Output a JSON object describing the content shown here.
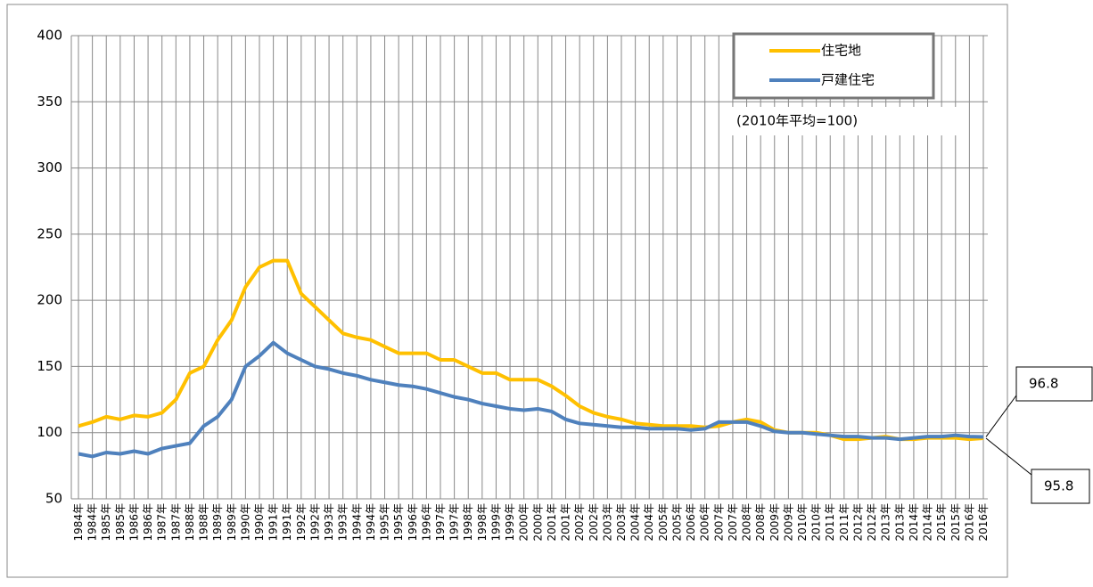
{
  "chart_data": {
    "type": "line",
    "note": "(2010年平均=100)",
    "categories": [
      "1984年",
      "1984年",
      "1985年",
      "1985年",
      "1986年",
      "1986年",
      "1987年",
      "1987年",
      "1988年",
      "1988年",
      "1989年",
      "1989年",
      "1990年",
      "1990年",
      "1991年",
      "1991年",
      "1992年",
      "1992年",
      "1993年",
      "1993年",
      "1994年",
      "1994年",
      "1995年",
      "1995年",
      "1996年",
      "1996年",
      "1997年",
      "1997年",
      "1998年",
      "1998年",
      "1999年",
      "1999年",
      "2000年",
      "2000年",
      "2001年",
      "2001年",
      "2002年",
      "2002年",
      "2003年",
      "2003年",
      "2004年",
      "2004年",
      "2005年",
      "2005年",
      "2006年",
      "2006年",
      "2007年",
      "2007年",
      "2008年",
      "2008年",
      "2009年",
      "2009年",
      "2010年",
      "2010年",
      "2011年",
      "2011年",
      "2012年",
      "2012年",
      "2013年",
      "2013年",
      "2014年",
      "2014年",
      "2015年",
      "2015年",
      "2016年",
      "2016年"
    ],
    "series": [
      {
        "name": "住宅地",
        "color": "#ffc000",
        "values": [
          105,
          108,
          112,
          110,
          113,
          112,
          115,
          125,
          145,
          150,
          170,
          185,
          210,
          225,
          230,
          230,
          205,
          195,
          185,
          175,
          172,
          170,
          165,
          160,
          160,
          160,
          155,
          155,
          150,
          145,
          145,
          140,
          140,
          140,
          135,
          128,
          120,
          115,
          112,
          110,
          107,
          106,
          105,
          105,
          105,
          104,
          105,
          108,
          110,
          108,
          102,
          100,
          100,
          100,
          98,
          95,
          95,
          96,
          97,
          95,
          95,
          96,
          96,
          96,
          95,
          95.8
        ]
      },
      {
        "name": "戸建住宅",
        "color": "#4f81bd",
        "values": [
          84,
          82,
          85,
          84,
          86,
          84,
          88,
          90,
          92,
          105,
          112,
          125,
          150,
          158,
          168,
          160,
          155,
          150,
          148,
          145,
          143,
          140,
          138,
          136,
          135,
          133,
          130,
          127,
          125,
          122,
          120,
          118,
          117,
          118,
          116,
          110,
          107,
          106,
          105,
          104,
          104,
          103,
          103,
          103,
          102,
          103,
          108,
          108,
          108,
          105,
          101,
          100,
          100,
          99,
          98,
          97,
          97,
          96,
          96,
          95,
          96,
          97,
          97,
          98,
          97,
          96.8
        ]
      }
    ],
    "ylim": [
      50,
      400
    ],
    "yticks": [
      50,
      100,
      150,
      200,
      250,
      300,
      350,
      400
    ],
    "grid": true,
    "legend": "top-right"
  }
}
